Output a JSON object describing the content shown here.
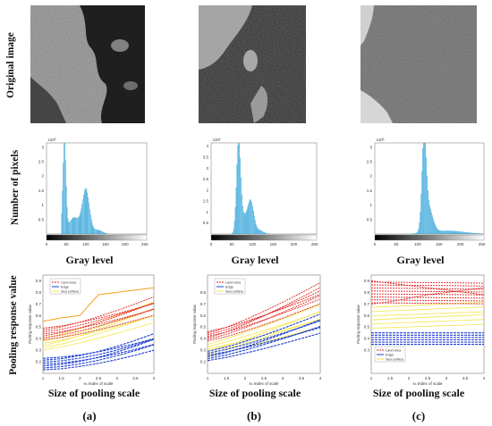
{
  "row_labels": {
    "original": "Original image",
    "pixels": "Number of pixels",
    "pooling": "Pooling response value"
  },
  "hist": {
    "xlabel": "Gray level",
    "exponent": "x10³",
    "xticks": [
      "0",
      "50",
      "100",
      "150",
      "200",
      "250"
    ],
    "yticks_a": [
      "3",
      "2.5",
      "2",
      "1.5",
      "1",
      "0.5"
    ],
    "yticks_b": [
      "4",
      "3.5",
      "3",
      "2.5",
      "2",
      "1.5",
      "1",
      "0.5"
    ],
    "yticks_c": [
      "3",
      "2.5",
      "2",
      "1.5",
      "1",
      "0.5"
    ]
  },
  "pool": {
    "xlabel": "Size of pooling scale",
    "inner_xlabel": "sₙ Index of scale",
    "inner_ylabel": "Pooling response value",
    "legend": [
      "Land area",
      "Edge",
      "Sea surface"
    ],
    "colors": {
      "land": "#e02020",
      "edge": "#1f3fd0",
      "sea": "#f2e64a",
      "orange": "#f4a020"
    }
  },
  "panel_labels": [
    "(a)",
    "(b)",
    "(c)"
  ],
  "chart_data": [
    {
      "type": "bar",
      "title": "",
      "xlabel": "Gray level",
      "ylabel": "Number of pixels",
      "xlim": [
        0,
        255
      ],
      "description_peaks": [
        [
          45,
          3.2
        ],
        [
          100,
          1.6
        ]
      ]
    },
    {
      "type": "bar",
      "title": "",
      "xlabel": "Gray level",
      "ylabel": "Number of pixels",
      "xlim": [
        0,
        255
      ],
      "description_peaks": [
        [
          65,
          4.3
        ],
        [
          95,
          1.4
        ]
      ]
    },
    {
      "type": "bar",
      "title": "",
      "xlabel": "Gray level",
      "ylabel": "Number of pixels",
      "xlim": [
        0,
        255
      ],
      "description_peaks": [
        [
          115,
          3.1
        ]
      ]
    },
    {
      "type": "line",
      "xlabel": "Size of pooling scale",
      "ylabel": "Pooling response value",
      "x": [
        1,
        2,
        3,
        4
      ],
      "legend": [
        "Land area",
        "Edge",
        "Sea surface"
      ]
    },
    {
      "type": "line",
      "xlabel": "Size of pooling scale",
      "ylabel": "Pooling response value",
      "x": [
        1,
        2,
        3,
        4
      ],
      "legend": [
        "Land area",
        "Edge",
        "Sea surface"
      ]
    },
    {
      "type": "line",
      "xlabel": "Size of pooling scale",
      "ylabel": "Pooling response value",
      "x": [
        1,
        2,
        3,
        4
      ],
      "legend": [
        "Land area",
        "Edge",
        "Sea surface"
      ]
    }
  ]
}
